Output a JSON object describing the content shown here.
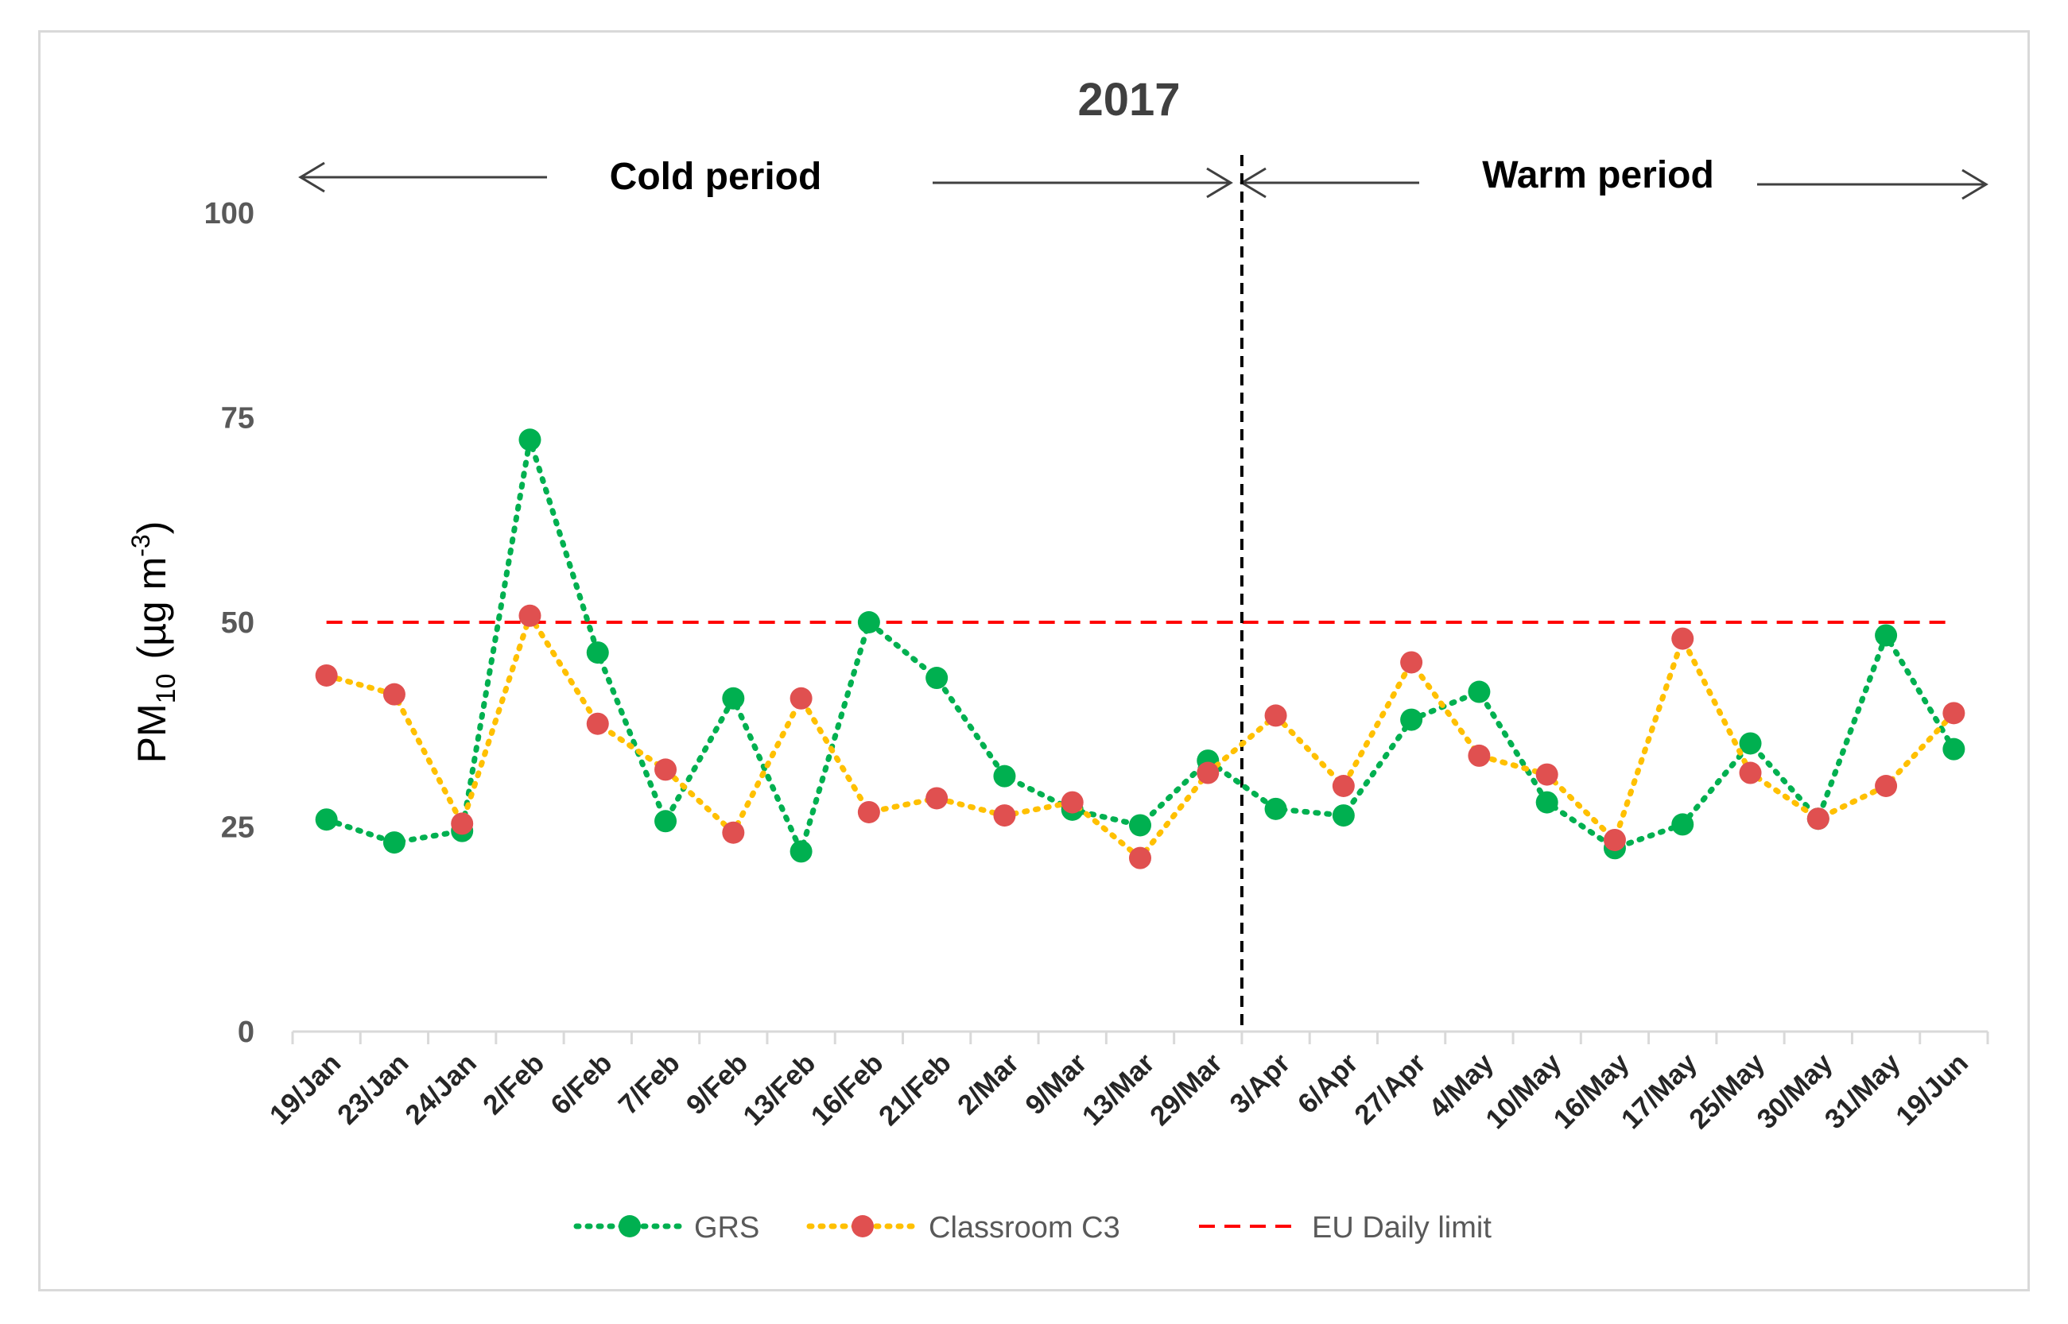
{
  "chart_data": {
    "type": "line",
    "title": "2017",
    "ylabel_main": "PM",
    "ylabel_sub": "10",
    "ylabel_unit_pre": "(µg m",
    "ylabel_unit_sup": "-3",
    "ylabel_unit_post": ")",
    "ylim": [
      0,
      100
    ],
    "yticks": [
      "0",
      "25",
      "50",
      "75",
      "100"
    ],
    "categories": [
      "19/Jan",
      "23/Jan",
      "24/Jan",
      "2/Feb",
      "6/Feb",
      "7/Feb",
      "9/Feb",
      "13/Feb",
      "16/Feb",
      "21/Feb",
      "2/Mar",
      "9/Mar",
      "13/Mar",
      "29/Mar",
      "3/Apr",
      "6/Apr",
      "27/Apr",
      "4/May",
      "10/May",
      "16/May",
      "17/May",
      "25/May",
      "30/May",
      "31/May",
      "19/Jun"
    ],
    "series": [
      {
        "name": "GRS",
        "line_color": "#00b050",
        "marker_color": "#00b050",
        "values": [
          25.9,
          23.1,
          24.5,
          72.3,
          46.3,
          25.7,
          40.7,
          22.0,
          50.0,
          43.2,
          31.2,
          27.1,
          25.2,
          33.1,
          27.2,
          26.4,
          38.1,
          41.5,
          28.0,
          22.4,
          25.3,
          35.2,
          26.0,
          48.4,
          34.5
        ]
      },
      {
        "name": "Classroom C3",
        "line_color": "#ffc000",
        "marker_color": "#e05050",
        "values": [
          43.5,
          41.2,
          25.4,
          50.8,
          37.6,
          32.0,
          24.3,
          40.7,
          26.8,
          28.5,
          26.4,
          28.0,
          21.2,
          31.6,
          38.6,
          30.0,
          45.1,
          33.7,
          31.4,
          23.4,
          48.0,
          31.6,
          26.0,
          30.0,
          38.9
        ]
      }
    ],
    "reference_line": {
      "name": "EU Daily limit",
      "value": 50,
      "color": "#ff0000"
    },
    "divider_after_category": "29/Mar",
    "periods": {
      "cold": "Cold period",
      "warm": "Warm period"
    }
  }
}
